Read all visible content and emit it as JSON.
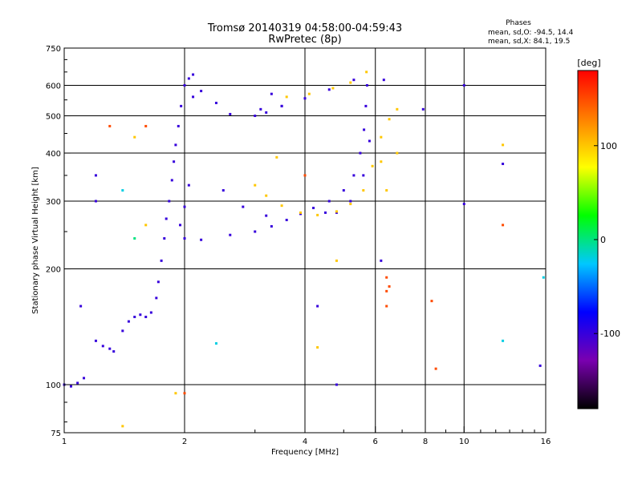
{
  "chart_data": {
    "type": "scatter",
    "title_line1": "Tromsø 20140319 04:58:00-04:59:43",
    "title_line2": "RwPretec (8p)",
    "stats": {
      "heading": "Phases",
      "line_o": "mean, sd,O: -94.5, 14.4",
      "line_x": "mean, sd,X:  84.1, 19.5"
    },
    "xlabel": "Frequency [MHz]",
    "ylabel": "Stationary phase Virtual Height [km]",
    "x_scale": "log",
    "y_scale": "log",
    "xlim": [
      1,
      16
    ],
    "ylim": [
      75,
      750
    ],
    "x_ticks": [
      1,
      2,
      4,
      6,
      8,
      10,
      16
    ],
    "x_tick_labels": [
      "1",
      "2",
      "4",
      "6",
      "8",
      "10",
      "16"
    ],
    "y_ticks": [
      75,
      100,
      200,
      300,
      400,
      500,
      600,
      750
    ],
    "y_tick_labels": [
      "75",
      "100",
      "200",
      "300",
      "400",
      "500",
      "600",
      "750"
    ],
    "grid": true,
    "colorbar": {
      "label": "[deg]",
      "range": [
        -180,
        180
      ],
      "ticks": [
        -100,
        0,
        100
      ],
      "tick_labels": [
        "-100",
        "0",
        "100"
      ],
      "colormap": [
        "#000000",
        "#7a00b0",
        "#0000ff",
        "#00c8ff",
        "#00ff00",
        "#ffff00",
        "#ff8000",
        "#ff0000"
      ]
    },
    "series": [
      {
        "points": [
          [
            1.0,
            100,
            -100
          ],
          [
            1.04,
            99,
            -100
          ],
          [
            1.08,
            101,
            -100
          ],
          [
            1.12,
            104,
            -100
          ],
          [
            1.2,
            130,
            -100
          ],
          [
            1.25,
            126,
            -100
          ],
          [
            1.3,
            124,
            -100
          ],
          [
            1.33,
            122,
            -100
          ],
          [
            1.4,
            138,
            -100
          ],
          [
            1.45,
            146,
            -100
          ],
          [
            1.5,
            150,
            -100
          ],
          [
            1.55,
            152,
            -100
          ],
          [
            1.6,
            150,
            -100
          ],
          [
            1.65,
            154,
            -100
          ],
          [
            1.7,
            168,
            -100
          ],
          [
            1.72,
            185,
            -100
          ],
          [
            1.75,
            210,
            -100
          ],
          [
            1.78,
            240,
            -100
          ],
          [
            1.8,
            270,
            -100
          ],
          [
            1.83,
            300,
            -100
          ],
          [
            1.86,
            340,
            -100
          ],
          [
            1.88,
            380,
            -100
          ],
          [
            1.9,
            420,
            -100
          ],
          [
            1.93,
            470,
            -100
          ],
          [
            1.96,
            530,
            -100
          ],
          [
            2.0,
            600,
            -100
          ],
          [
            2.05,
            625,
            -100
          ],
          [
            2.1,
            560,
            -100
          ],
          [
            2.05,
            330,
            -100
          ],
          [
            2.0,
            290,
            -100
          ],
          [
            1.95,
            260,
            -100
          ],
          [
            2.0,
            240,
            -100
          ],
          [
            2.2,
            238,
            -100
          ],
          [
            2.6,
            245,
            -100
          ],
          [
            3.0,
            250,
            -100
          ],
          [
            3.3,
            258,
            -100
          ],
          [
            3.6,
            268,
            -100
          ],
          [
            3.9,
            278,
            -100
          ],
          [
            4.2,
            288,
            -100
          ],
          [
            4.6,
            300,
            -100
          ],
          [
            5.0,
            320,
            -100
          ],
          [
            5.3,
            350,
            -100
          ],
          [
            5.5,
            400,
            -100
          ],
          [
            5.62,
            460,
            -100
          ],
          [
            5.68,
            530,
            -100
          ],
          [
            5.72,
            600,
            -100
          ],
          [
            2.1,
            640,
            -100
          ],
          [
            2.2,
            580,
            -100
          ],
          [
            2.4,
            540,
            -100
          ],
          [
            2.6,
            505,
            -100
          ],
          [
            3.0,
            500,
            -100
          ],
          [
            3.2,
            510,
            -100
          ],
          [
            3.5,
            530,
            -100
          ],
          [
            4.0,
            555,
            -100
          ],
          [
            4.6,
            585,
            -100
          ],
          [
            5.3,
            620,
            -100
          ],
          [
            5.7,
            650,
            100
          ],
          [
            6.3,
            620,
            -100
          ],
          [
            10.0,
            600,
            -100
          ],
          [
            2.5,
            320,
            -100
          ],
          [
            2.8,
            290,
            -100
          ],
          [
            3.2,
            275,
            -100
          ],
          [
            4.8,
            280,
            -100
          ],
          [
            5.2,
            300,
            -100
          ],
          [
            5.6,
            350,
            -100
          ],
          [
            5.8,
            430,
            -100
          ],
          [
            6.2,
            380,
            100
          ],
          [
            6.4,
            320,
            100
          ],
          [
            3.0,
            330,
            100
          ],
          [
            3.2,
            310,
            100
          ],
          [
            3.5,
            292,
            100
          ],
          [
            3.9,
            280,
            100
          ],
          [
            4.3,
            276,
            100
          ],
          [
            4.8,
            282,
            100
          ],
          [
            5.2,
            295,
            100
          ],
          [
            5.6,
            320,
            100
          ],
          [
            5.9,
            370,
            100
          ],
          [
            6.2,
            440,
            100
          ],
          [
            6.5,
            490,
            100
          ],
          [
            6.8,
            400,
            100
          ],
          [
            3.6,
            560,
            100
          ],
          [
            4.1,
            570,
            100
          ],
          [
            4.7,
            590,
            100
          ],
          [
            5.2,
            610,
            100
          ],
          [
            6.8,
            520,
            100
          ],
          [
            1.5,
            440,
            100
          ],
          [
            1.6,
            470,
            150
          ],
          [
            8.5,
            110,
            150
          ],
          [
            8.3,
            165,
            150
          ],
          [
            6.4,
            175,
            150
          ],
          [
            12.5,
            420,
            100
          ],
          [
            12.5,
            260,
            150
          ],
          [
            12.5,
            130,
            -20
          ],
          [
            15.5,
            112,
            -100
          ],
          [
            15.8,
            190,
            -20
          ],
          [
            1.2,
            350,
            -100
          ],
          [
            1.2,
            300,
            -100
          ],
          [
            1.1,
            160,
            -100
          ],
          [
            1.4,
            78,
            100
          ],
          [
            1.9,
            95,
            100
          ],
          [
            2.0,
            95,
            150
          ],
          [
            2.4,
            128,
            -20
          ],
          [
            4.3,
            160,
            -100
          ],
          [
            4.3,
            125,
            100
          ],
          [
            4.8,
            100,
            -100
          ],
          [
            4.8,
            210,
            100
          ],
          [
            7.9,
            520,
            -100
          ],
          [
            10.0,
            295,
            -100
          ],
          [
            12.5,
            375,
            -100
          ],
          [
            3.3,
            570,
            -100
          ],
          [
            3.5,
            530,
            -100
          ],
          [
            3.1,
            520,
            -100
          ],
          [
            1.4,
            320,
            -20
          ],
          [
            1.6,
            260,
            100
          ],
          [
            1.3,
            470,
            150
          ],
          [
            1.5,
            240,
            0
          ],
          [
            4.0,
            350,
            150
          ],
          [
            3.4,
            390,
            100
          ],
          [
            4.5,
            280,
            -100
          ],
          [
            6.2,
            210,
            -100
          ],
          [
            6.4,
            190,
            150
          ],
          [
            6.5,
            180,
            150
          ],
          [
            6.4,
            160,
            150
          ]
        ]
      }
    ]
  }
}
